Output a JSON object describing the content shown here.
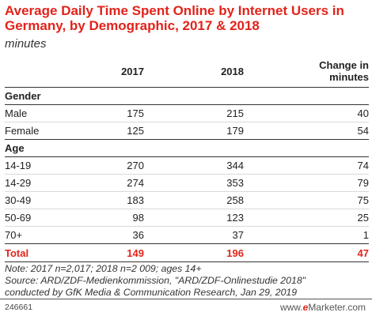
{
  "header": {
    "title": "Average Daily Time Spent Online by Internet Users in Germany, by Demographic, 2017 & 2018",
    "subtitle": "minutes"
  },
  "chart_data": {
    "type": "table",
    "title": "Average Daily Time Spent Online by Internet Users in Germany, by Demographic, 2017 & 2018",
    "subtitle": "minutes",
    "columns": [
      "",
      "2017",
      "2018",
      "Change in minutes"
    ],
    "sections": [
      {
        "name": "Gender",
        "rows": [
          {
            "label": "Male",
            "v2017": "175",
            "v2018": "215",
            "change": "40"
          },
          {
            "label": "Female",
            "v2017": "125",
            "v2018": "179",
            "change": "54"
          }
        ]
      },
      {
        "name": "Age",
        "rows": [
          {
            "label": "14-19",
            "v2017": "270",
            "v2018": "344",
            "change": "74"
          },
          {
            "label": "14-29",
            "v2017": "274",
            "v2018": "353",
            "change": "79"
          },
          {
            "label": "30-49",
            "v2017": "183",
            "v2018": "258",
            "change": "75"
          },
          {
            "label": "50-69",
            "v2017": "98",
            "v2018": "123",
            "change": "25"
          },
          {
            "label": "70+",
            "v2017": "36",
            "v2018": "37",
            "change": "1"
          }
        ]
      }
    ],
    "total": {
      "label": "Total",
      "v2017": "149",
      "v2018": "196",
      "change": "47"
    }
  },
  "notes": {
    "line1": "Note: 2017 n=2,017; 2018 n=2 009; ages 14+",
    "line2": "Source: ARD/ZDF-Medienkommission, \"ARD/ZDF-Onlinestudie 2018\"",
    "line3": "conducted by GfK Media & Communication Research, Jan 29, 2019"
  },
  "footer": {
    "chart_id": "246661",
    "brand_prefix": "www.",
    "brand_e": "e",
    "brand_suffix": "Marketer.com"
  },
  "colors": {
    "accent": "#e2231a",
    "text": "#222222",
    "rule": "#333333",
    "row_divider": "#d9d9d9"
  }
}
